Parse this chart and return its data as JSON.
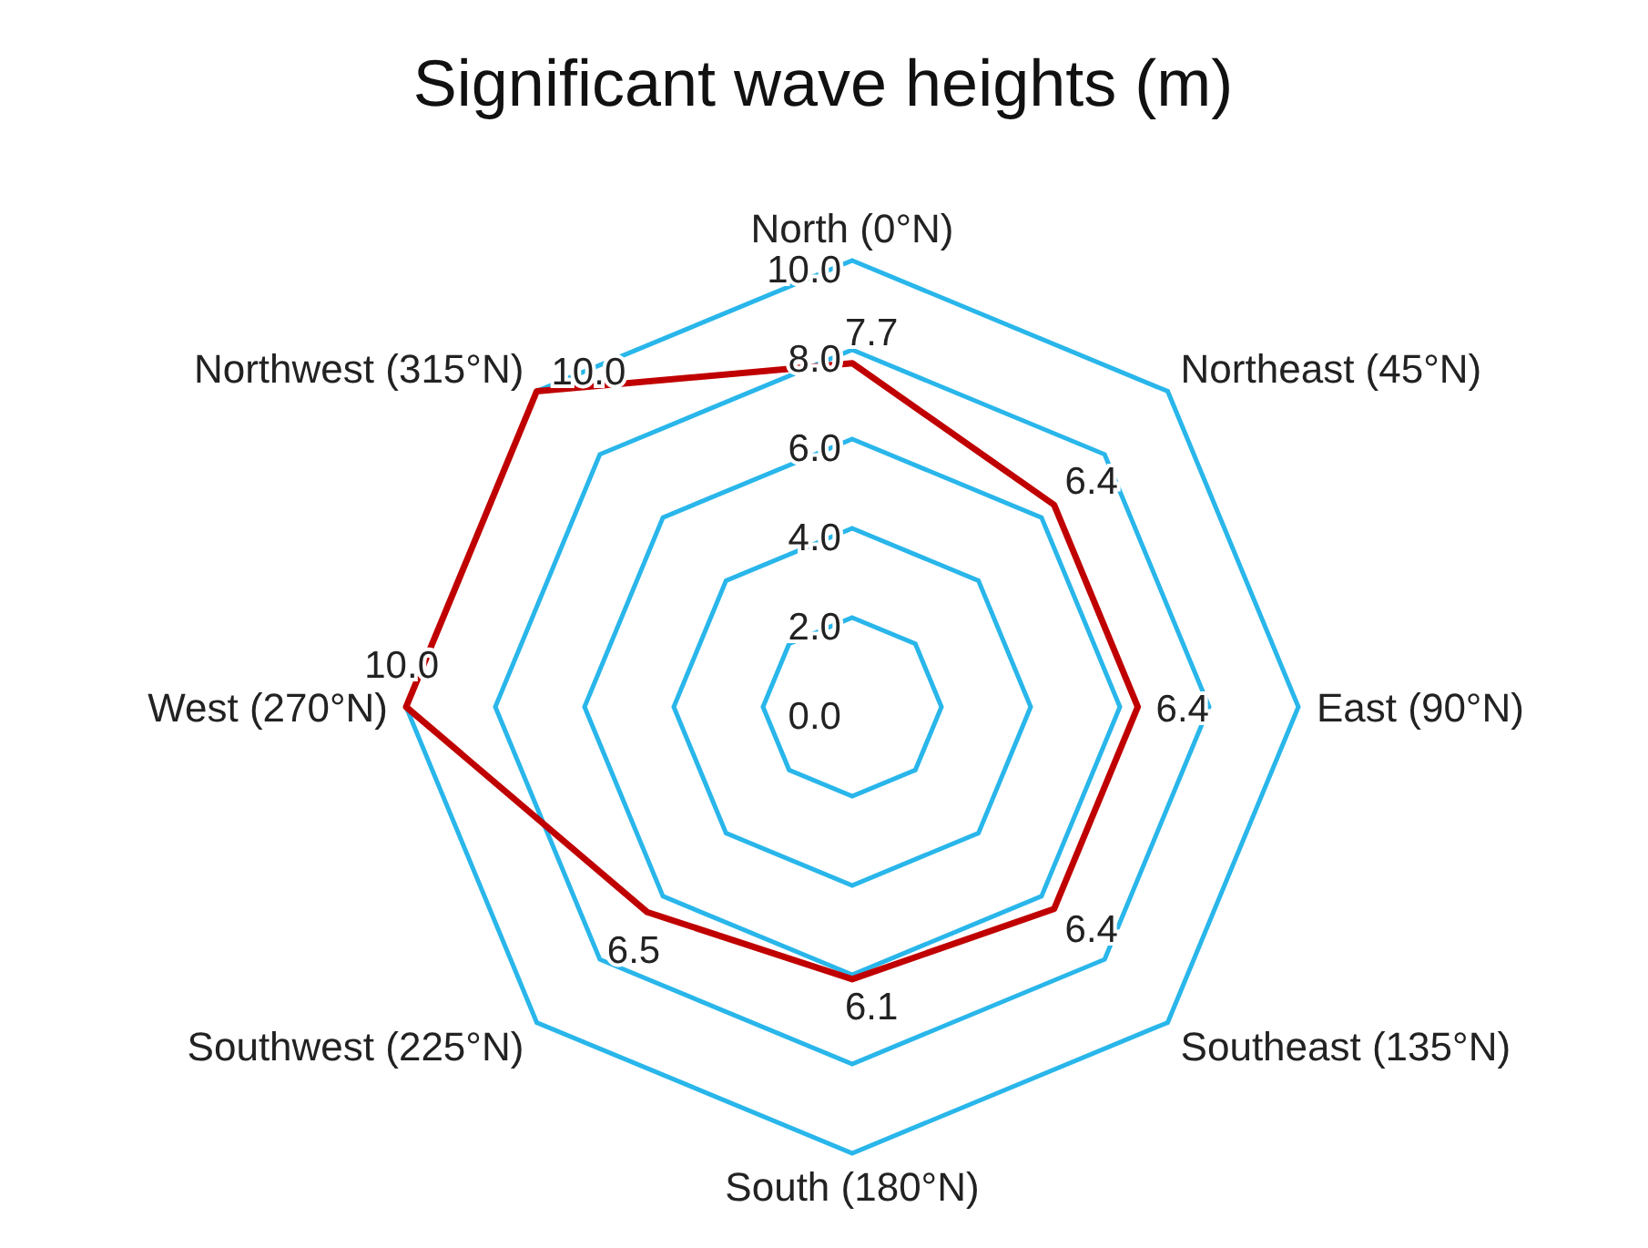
{
  "chart_data": {
    "type": "radar",
    "title": "Significant wave heights (m)",
    "categories": [
      "North (0°N)",
      "Northeast (45°N)",
      "East (90°N)",
      "Southeast (135°N)",
      "South (180°N)",
      "Southwest (225°N)",
      "West (270°N)",
      "Northwest (315°N)"
    ],
    "series": [
      {
        "color": "#c00000",
        "values": [
          7.7,
          6.4,
          6.4,
          6.4,
          6.1,
          6.5,
          10.0,
          10.0
        ],
        "value_labels": [
          "7.7",
          "6.4",
          "6.4",
          "6.4",
          "6.1",
          "6.5",
          "10.0",
          "10.0"
        ]
      }
    ],
    "ylim": [
      0,
      10
    ],
    "yticks": [
      {
        "value": 0,
        "label": "0.0"
      },
      {
        "value": 2,
        "label": "2.0"
      },
      {
        "value": 4,
        "label": "4.0"
      },
      {
        "value": 6,
        "label": "6.0"
      },
      {
        "value": 8,
        "label": "8.0"
      },
      {
        "value": 10,
        "label": "10.0"
      }
    ],
    "grid": true,
    "marker": "none",
    "line_style": "solid"
  }
}
